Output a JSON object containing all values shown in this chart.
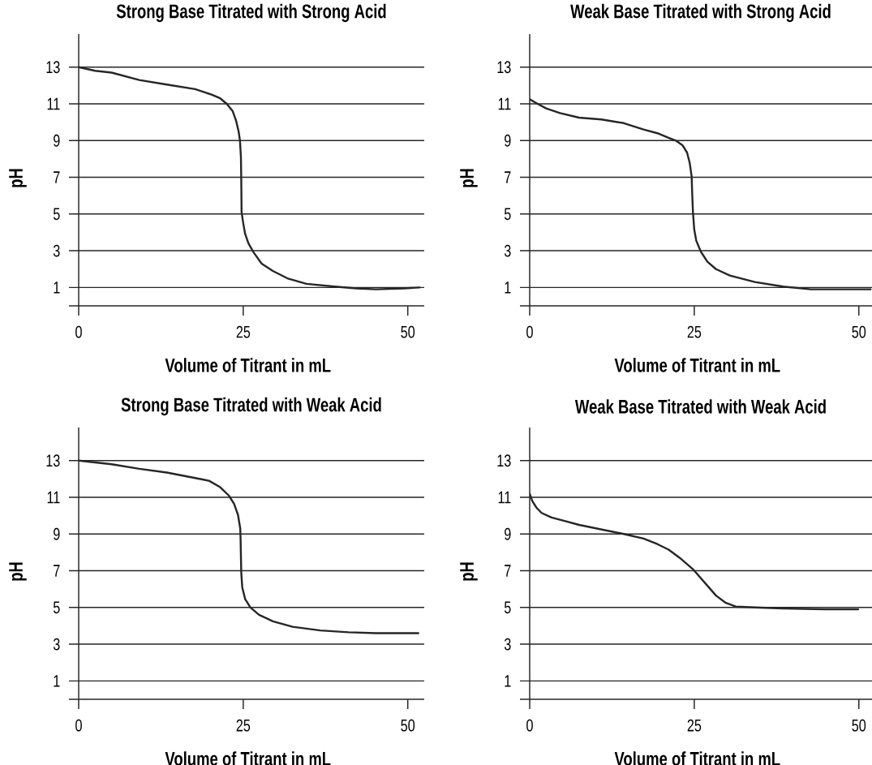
{
  "chart_data": [
    {
      "type": "line",
      "title": "Strong Base Titrated with Strong Acid",
      "xlabel": "Volume of Titrant in mL",
      "ylabel": "pH",
      "color": "#262626",
      "grid": "y",
      "xlim": [
        0,
        52.5
      ],
      "ylim": [
        0,
        14.8
      ],
      "xticks": [
        0,
        25,
        50
      ],
      "yticks": [
        1,
        3,
        5,
        7,
        9,
        11,
        13
      ],
      "x": [
        0,
        2.5,
        5,
        9.2,
        13.4,
        17.7,
        20.2,
        21.5,
        22.5,
        23.4,
        23.9,
        24.3,
        24.5,
        24.65,
        24.7,
        24.75,
        25.0,
        25.3,
        25.8,
        26.6,
        27.8,
        29.5,
        31.7,
        34.6,
        38.9,
        42.2,
        45.2,
        49.4,
        51.8
      ],
      "values": [
        13.0,
        12.8,
        12.7,
        12.3,
        12.05,
        11.8,
        11.5,
        11.3,
        11.0,
        10.6,
        10.1,
        9.5,
        9.0,
        8.1,
        6.9,
        5.1,
        4.5,
        3.9,
        3.4,
        2.9,
        2.3,
        1.9,
        1.5,
        1.2,
        1.05,
        0.95,
        0.9,
        0.95,
        1.0
      ]
    },
    {
      "type": "line",
      "title": "Weak Base Titrated with Strong Acid",
      "xlabel": "Volume of Titrant in mL",
      "ylabel": "pH",
      "color": "#262626",
      "grid": "y",
      "xlim": [
        0,
        52
      ],
      "ylim": [
        0,
        14.8
      ],
      "xticks": [
        0,
        25,
        50
      ],
      "yticks": [
        1,
        3,
        5,
        7,
        9,
        11,
        13
      ],
      "x": [
        0,
        1.2,
        2.5,
        4.6,
        7.5,
        10.9,
        14.3,
        17.3,
        19.4,
        21.1,
        22.2,
        23.2,
        23.9,
        24.3,
        24.6,
        24.7,
        24.8,
        25.0,
        25.3,
        26.0,
        27.0,
        28.3,
        30.4,
        34.2,
        38.5,
        42.7,
        46.9,
        51.8
      ],
      "values": [
        11.25,
        11.0,
        10.75,
        10.5,
        10.25,
        10.15,
        9.95,
        9.6,
        9.4,
        9.15,
        9.0,
        8.75,
        8.35,
        7.8,
        7.05,
        6.0,
        5.1,
        4.15,
        3.55,
        2.95,
        2.4,
        2.0,
        1.65,
        1.3,
        1.05,
        0.9,
        0.9,
        0.9
      ]
    },
    {
      "type": "line",
      "title": "Strong Base Titrated with Weak Acid",
      "xlabel": "Volume of Titrant in mL",
      "ylabel": "pH",
      "color": "#262626",
      "grid": "y",
      "xlim": [
        0,
        52.5
      ],
      "ylim": [
        0,
        14.8
      ],
      "xticks": [
        0,
        25,
        50
      ],
      "yticks": [
        1,
        3,
        5,
        7,
        9,
        11,
        13
      ],
      "x": [
        0,
        5.0,
        9.2,
        13.4,
        17.7,
        19.8,
        21.5,
        22.8,
        23.6,
        24.2,
        24.55,
        24.6,
        24.65,
        24.7,
        24.85,
        25.3,
        26.1,
        27.4,
        29.5,
        32.5,
        36.7,
        41.0,
        45.2,
        51.6
      ],
      "values": [
        13.0,
        12.8,
        12.55,
        12.35,
        12.05,
        11.9,
        11.55,
        11.1,
        10.65,
        10.05,
        9.3,
        8.7,
        7.8,
        6.9,
        6.1,
        5.45,
        5.0,
        4.6,
        4.25,
        3.95,
        3.75,
        3.65,
        3.6,
        3.6
      ]
    },
    {
      "type": "line",
      "title": "Weak Base Titrated with Weak Acid",
      "xlabel": "Volume of Titrant in mL",
      "ylabel": "pH",
      "color": "#262626",
      "grid": "y",
      "xlim": [
        0,
        52
      ],
      "ylim": [
        0,
        14.8
      ],
      "xticks": [
        0,
        25,
        50
      ],
      "yticks": [
        1,
        3,
        5,
        7,
        9,
        11,
        13
      ],
      "x": [
        0,
        0.4,
        1.0,
        1.8,
        3.3,
        5.4,
        7.5,
        10.9,
        14.3,
        17.3,
        19.4,
        21.1,
        22.8,
        24.9,
        26.6,
        28.3,
        29.8,
        31.3,
        34.2,
        38.5,
        44.8,
        49.9
      ],
      "values": [
        11.2,
        10.8,
        10.45,
        10.15,
        9.9,
        9.7,
        9.5,
        9.25,
        9.0,
        8.75,
        8.45,
        8.15,
        7.7,
        7.05,
        6.35,
        5.65,
        5.25,
        5.05,
        5.0,
        4.95,
        4.9,
        4.9
      ]
    }
  ]
}
